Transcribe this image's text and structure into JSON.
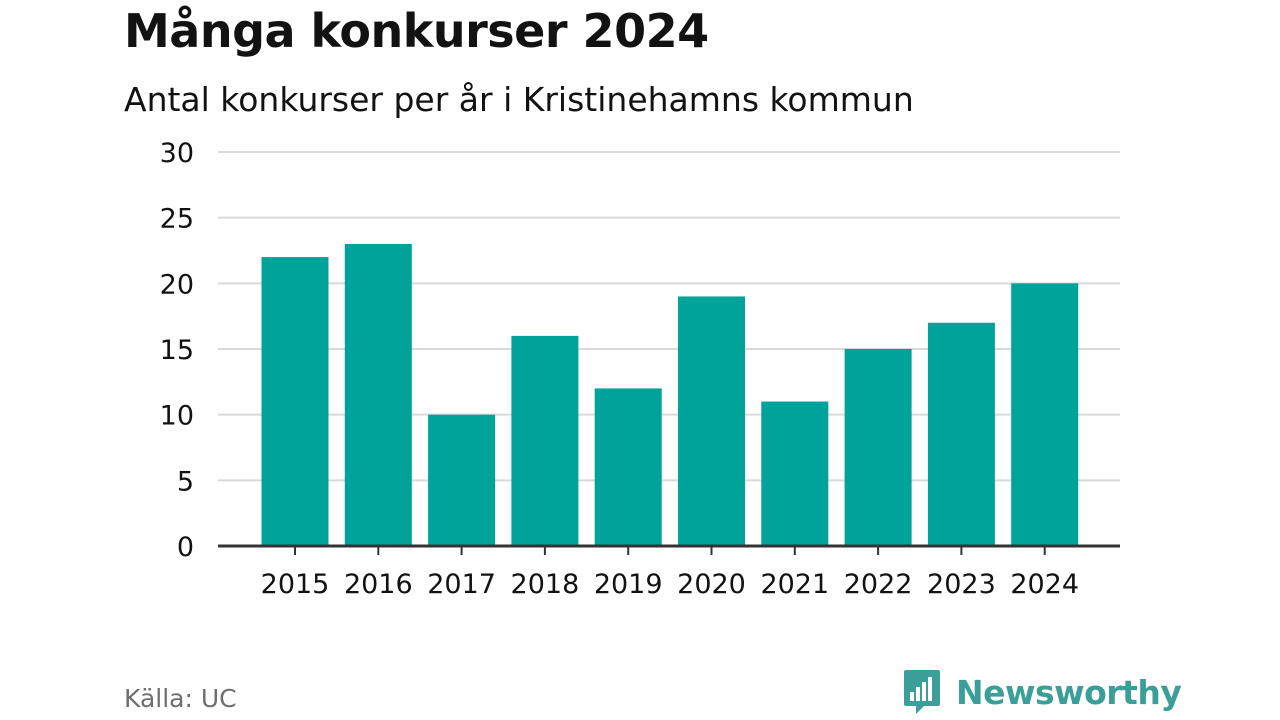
{
  "header": {
    "title": "Många konkurser 2024",
    "subtitle": "Antal konkurser per år i Kristinehamns kommun"
  },
  "footer": {
    "source": "Källa: UC",
    "brand": "Newsworthy",
    "brand_icon": "newsworthy-logo-icon"
  },
  "colors": {
    "bar": "#00a39a",
    "grid": "#d9d9d9",
    "axis": "#333333",
    "text": "#121212",
    "brand": "#3c9e98"
  },
  "chart_data": {
    "type": "bar",
    "categories": [
      "2015",
      "2016",
      "2017",
      "2018",
      "2019",
      "2020",
      "2021",
      "2022",
      "2023",
      "2024"
    ],
    "values": [
      22,
      23,
      10,
      16,
      12,
      19,
      11,
      15,
      17,
      20
    ],
    "ylim": [
      0,
      30
    ],
    "yticks": [
      0,
      5,
      10,
      15,
      20,
      25,
      30
    ],
    "grid": true,
    "legend": "none"
  }
}
